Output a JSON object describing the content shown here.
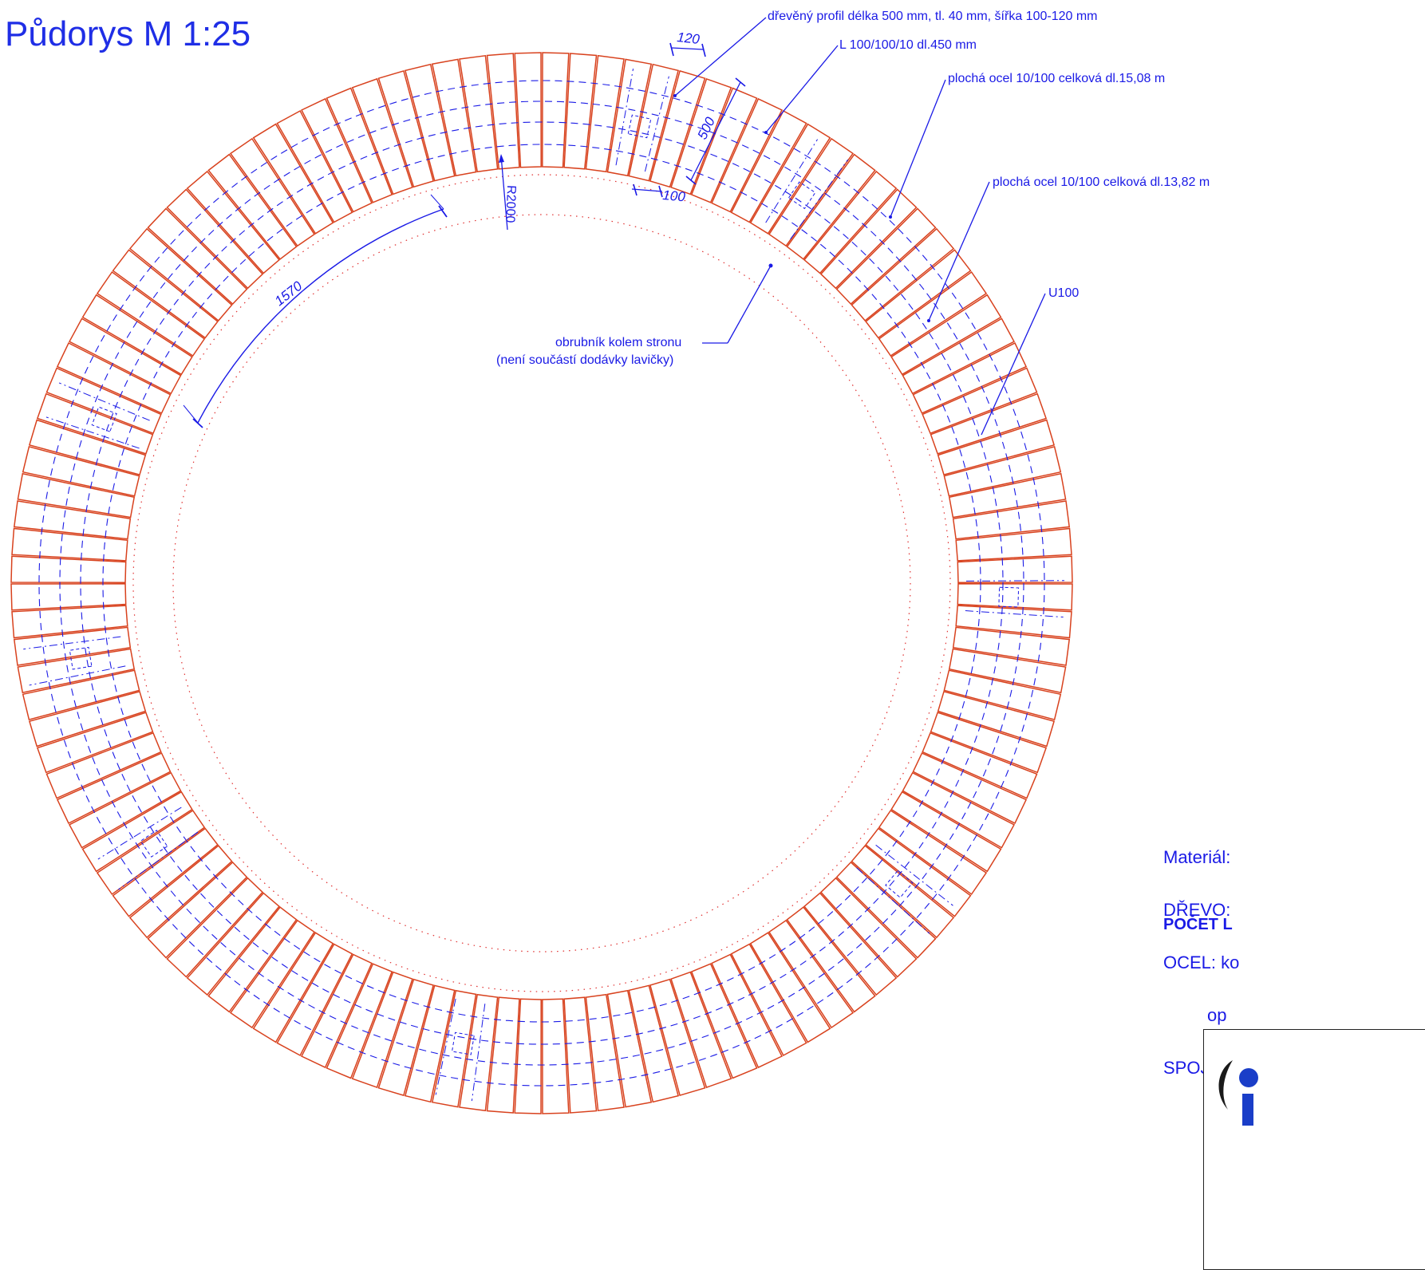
{
  "title": "Půdorys  M 1:25",
  "callouts": {
    "wood_profile": "dřevěný profil délka 500 mm, tl. 40 mm, šířka 100-120 mm",
    "angle_profile": "L 100/100/10  dl.450 mm",
    "flat_steel_outer": "plochá ocel 10/100 celková dl.15,08 m",
    "flat_steel_inner": "plochá ocel 10/100 celková dl.13,82 m",
    "channel": "U100",
    "curb_line1": "obrubník kolem stronu",
    "curb_line2": "(není součástí dodávky lavičky)"
  },
  "dimensions": {
    "profile_width_outer": "120",
    "profile_width_inner": "100",
    "profile_length": "500",
    "radius": "R2000",
    "arc_length": "1570"
  },
  "material_lines": [
    "Materiál:",
    "DŘEVO:",
    "OCEL: ko",
    "         op",
    "SPOJOVA"
  ],
  "count_label": "POČET L",
  "colors": {
    "slat": "#d8421e",
    "annotation": "#1a1ae6",
    "curb": "#e03030"
  },
  "icons": {
    "logo": "company-logo-icon"
  }
}
